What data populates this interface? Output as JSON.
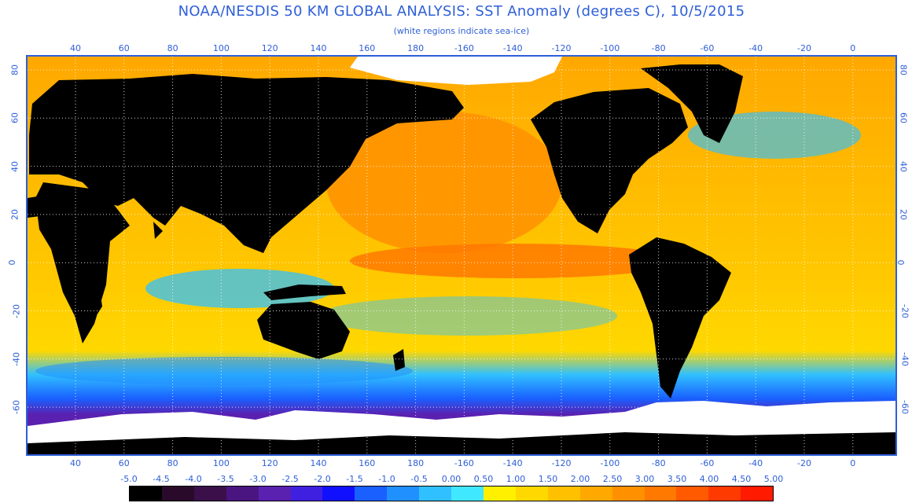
{
  "title": "NOAA/NESDIS 50 KM GLOBAL ANALYSIS: SST Anomaly (degrees C), 10/5/2015",
  "subtitle": "(white regions indicate sea-ice)",
  "axes": {
    "lon_ticks": [
      "40",
      "60",
      "80",
      "100",
      "120",
      "140",
      "160",
      "180",
      "-160",
      "-140",
      "-120",
      "-100",
      "-80",
      "-60",
      "-40",
      "-20",
      "0"
    ],
    "lat_ticks": [
      "80",
      "60",
      "40",
      "20",
      "0",
      "-20",
      "-40",
      "-60"
    ]
  },
  "legend": {
    "labels": [
      "-5.0",
      "-4.5",
      "-4.0",
      "-3.5",
      "-3.0",
      "-2.5",
      "-2.0",
      "-1.5",
      "-1.0",
      "-0.5",
      "0.00",
      "0.50",
      "1.00",
      "1.50",
      "2.00",
      "2.50",
      "3.00",
      "3.50",
      "4.00",
      "4.50",
      "5.00"
    ],
    "colors": [
      "#000000",
      "#2a0a2a",
      "#3a0f4a",
      "#4a1580",
      "#5a20b0",
      "#4020e0",
      "#1010ff",
      "#1a60ff",
      "#2090ff",
      "#30c0ff",
      "#40e8ff",
      "#fff000",
      "#ffd800",
      "#ffc000",
      "#ffa800",
      "#ff9000",
      "#ff7800",
      "#ff5a00",
      "#ff3a00",
      "#ff1a00"
    ]
  },
  "map": {
    "land_color": "#000000",
    "ice_color": "#ffffff",
    "ocean_base_color": "#ffb000",
    "grid_color": "#ffffff"
  }
}
